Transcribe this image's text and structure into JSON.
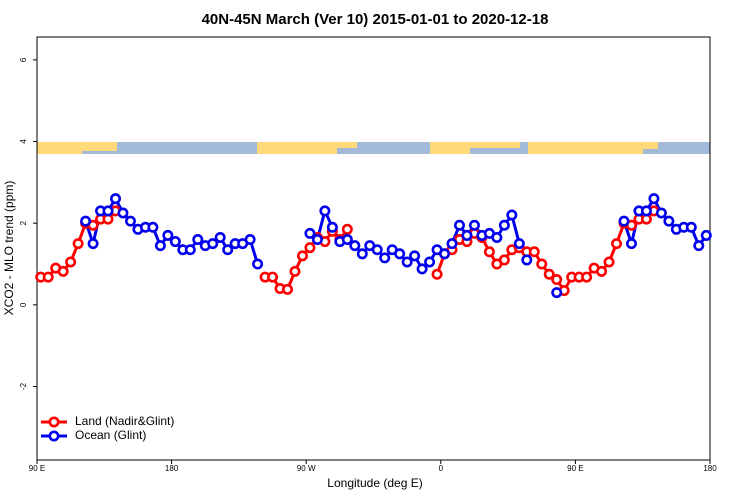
{
  "chart_data": {
    "type": "line",
    "title": "40N-45N March (Ver 10)   2015-01-01 to 2020-12-18",
    "x_label": "Longitude (deg E)",
    "y_label": "XCO2 - MLO trend (ppm)",
    "xlim": [
      90,
      540
    ],
    "xticks": [
      {
        "value": 90,
        "label": "90 E"
      },
      180,
      {
        "value": 270,
        "label": "90 W"
      },
      {
        "value": 360,
        "label": "0"
      },
      {
        "value": 450,
        "label": "90 E"
      },
      {
        "value": 540,
        "label": "180"
      }
    ],
    "ylim": [
      -3.8,
      6.56
    ],
    "yticks": [
      -2,
      0,
      2,
      4,
      6
    ],
    "legend": "bottomleft",
    "x": [
      92.5,
      97.5,
      102.5,
      107.5,
      112.5,
      117.5,
      122.5,
      127.5,
      132.5,
      137.5,
      142.5,
      147.5,
      152.5,
      157.5,
      162.5,
      167.5,
      172.5,
      177.5,
      182.5,
      187.5,
      192.5,
      197.5,
      202.5,
      207.5,
      212.5,
      217.5,
      222.5,
      227.5,
      232.5,
      237.5,
      242.5,
      247.5,
      252.5,
      257.5,
      262.5,
      267.5,
      272.5,
      277.5,
      282.5,
      287.5,
      292.5,
      297.5,
      302.5,
      307.5,
      312.5,
      317.5,
      322.5,
      327.5,
      332.5,
      337.5,
      342.5,
      347.5,
      352.5,
      357.5,
      362.5,
      367.5,
      372.5,
      377.5,
      382.5,
      387.5,
      392.5,
      397.5,
      402.5,
      407.5,
      412.5,
      417.5,
      422.5,
      427.5,
      432.5,
      437.5,
      442.5,
      447.5,
      452.5,
      457.5,
      462.5,
      467.5,
      472.5,
      477.5,
      482.5,
      487.5,
      492.5,
      497.5,
      502.5,
      507.5,
      512.5,
      517.5,
      522.5,
      527.5,
      532.5,
      537.5
    ],
    "series": [
      {
        "name": "Land (Nadir&Glint)",
        "color": "#ff0000",
        "values": [
          0.68,
          0.68,
          0.9,
          0.82,
          1.05,
          1.5,
          2.0,
          1.95,
          2.1,
          2.1,
          2.3,
          null,
          null,
          null,
          null,
          null,
          null,
          null,
          null,
          null,
          null,
          null,
          null,
          null,
          null,
          null,
          null,
          null,
          null,
          null,
          0.68,
          0.68,
          0.4,
          0.38,
          0.82,
          1.2,
          1.4,
          1.65,
          1.55,
          1.8,
          1.6,
          1.85,
          null,
          null,
          null,
          null,
          null,
          null,
          null,
          null,
          null,
          null,
          null,
          0.75,
          1.25,
          1.35,
          1.6,
          1.55,
          1.75,
          1.65,
          1.3,
          1.0,
          1.1,
          1.35,
          1.4,
          1.3,
          1.3,
          1.0,
          0.75,
          0.62,
          0.35,
          0.68,
          0.68,
          0.68,
          0.9,
          0.82,
          1.05,
          1.5,
          2.0,
          1.95,
          2.1,
          2.1,
          2.3,
          null,
          null,
          null,
          null,
          null,
          null,
          null
        ]
      },
      {
        "name": "Ocean (Glint)",
        "color": "#0000ee",
        "values": [
          null,
          null,
          null,
          null,
          null,
          null,
          2.05,
          1.5,
          2.3,
          2.3,
          2.6,
          2.25,
          2.05,
          1.85,
          1.9,
          1.9,
          1.45,
          1.7,
          1.55,
          1.35,
          1.35,
          1.6,
          1.45,
          1.5,
          1.65,
          1.35,
          1.5,
          1.5,
          1.6,
          1.0,
          null,
          null,
          null,
          null,
          null,
          null,
          1.75,
          1.6,
          2.3,
          1.9,
          1.55,
          1.6,
          1.45,
          1.25,
          1.45,
          1.35,
          1.15,
          1.35,
          1.25,
          1.05,
          1.2,
          0.88,
          1.05,
          1.35,
          1.25,
          1.5,
          1.95,
          1.7,
          1.95,
          1.7,
          1.75,
          1.65,
          1.95,
          2.2,
          1.5,
          1.1,
          null,
          null,
          null,
          0.3,
          null,
          null,
          null,
          null,
          null,
          null,
          null,
          null,
          2.05,
          1.5,
          2.3,
          2.3,
          2.6,
          2.25,
          2.05,
          1.85,
          1.9,
          1.9,
          1.45,
          1.7
        ]
      }
    ]
  }
}
